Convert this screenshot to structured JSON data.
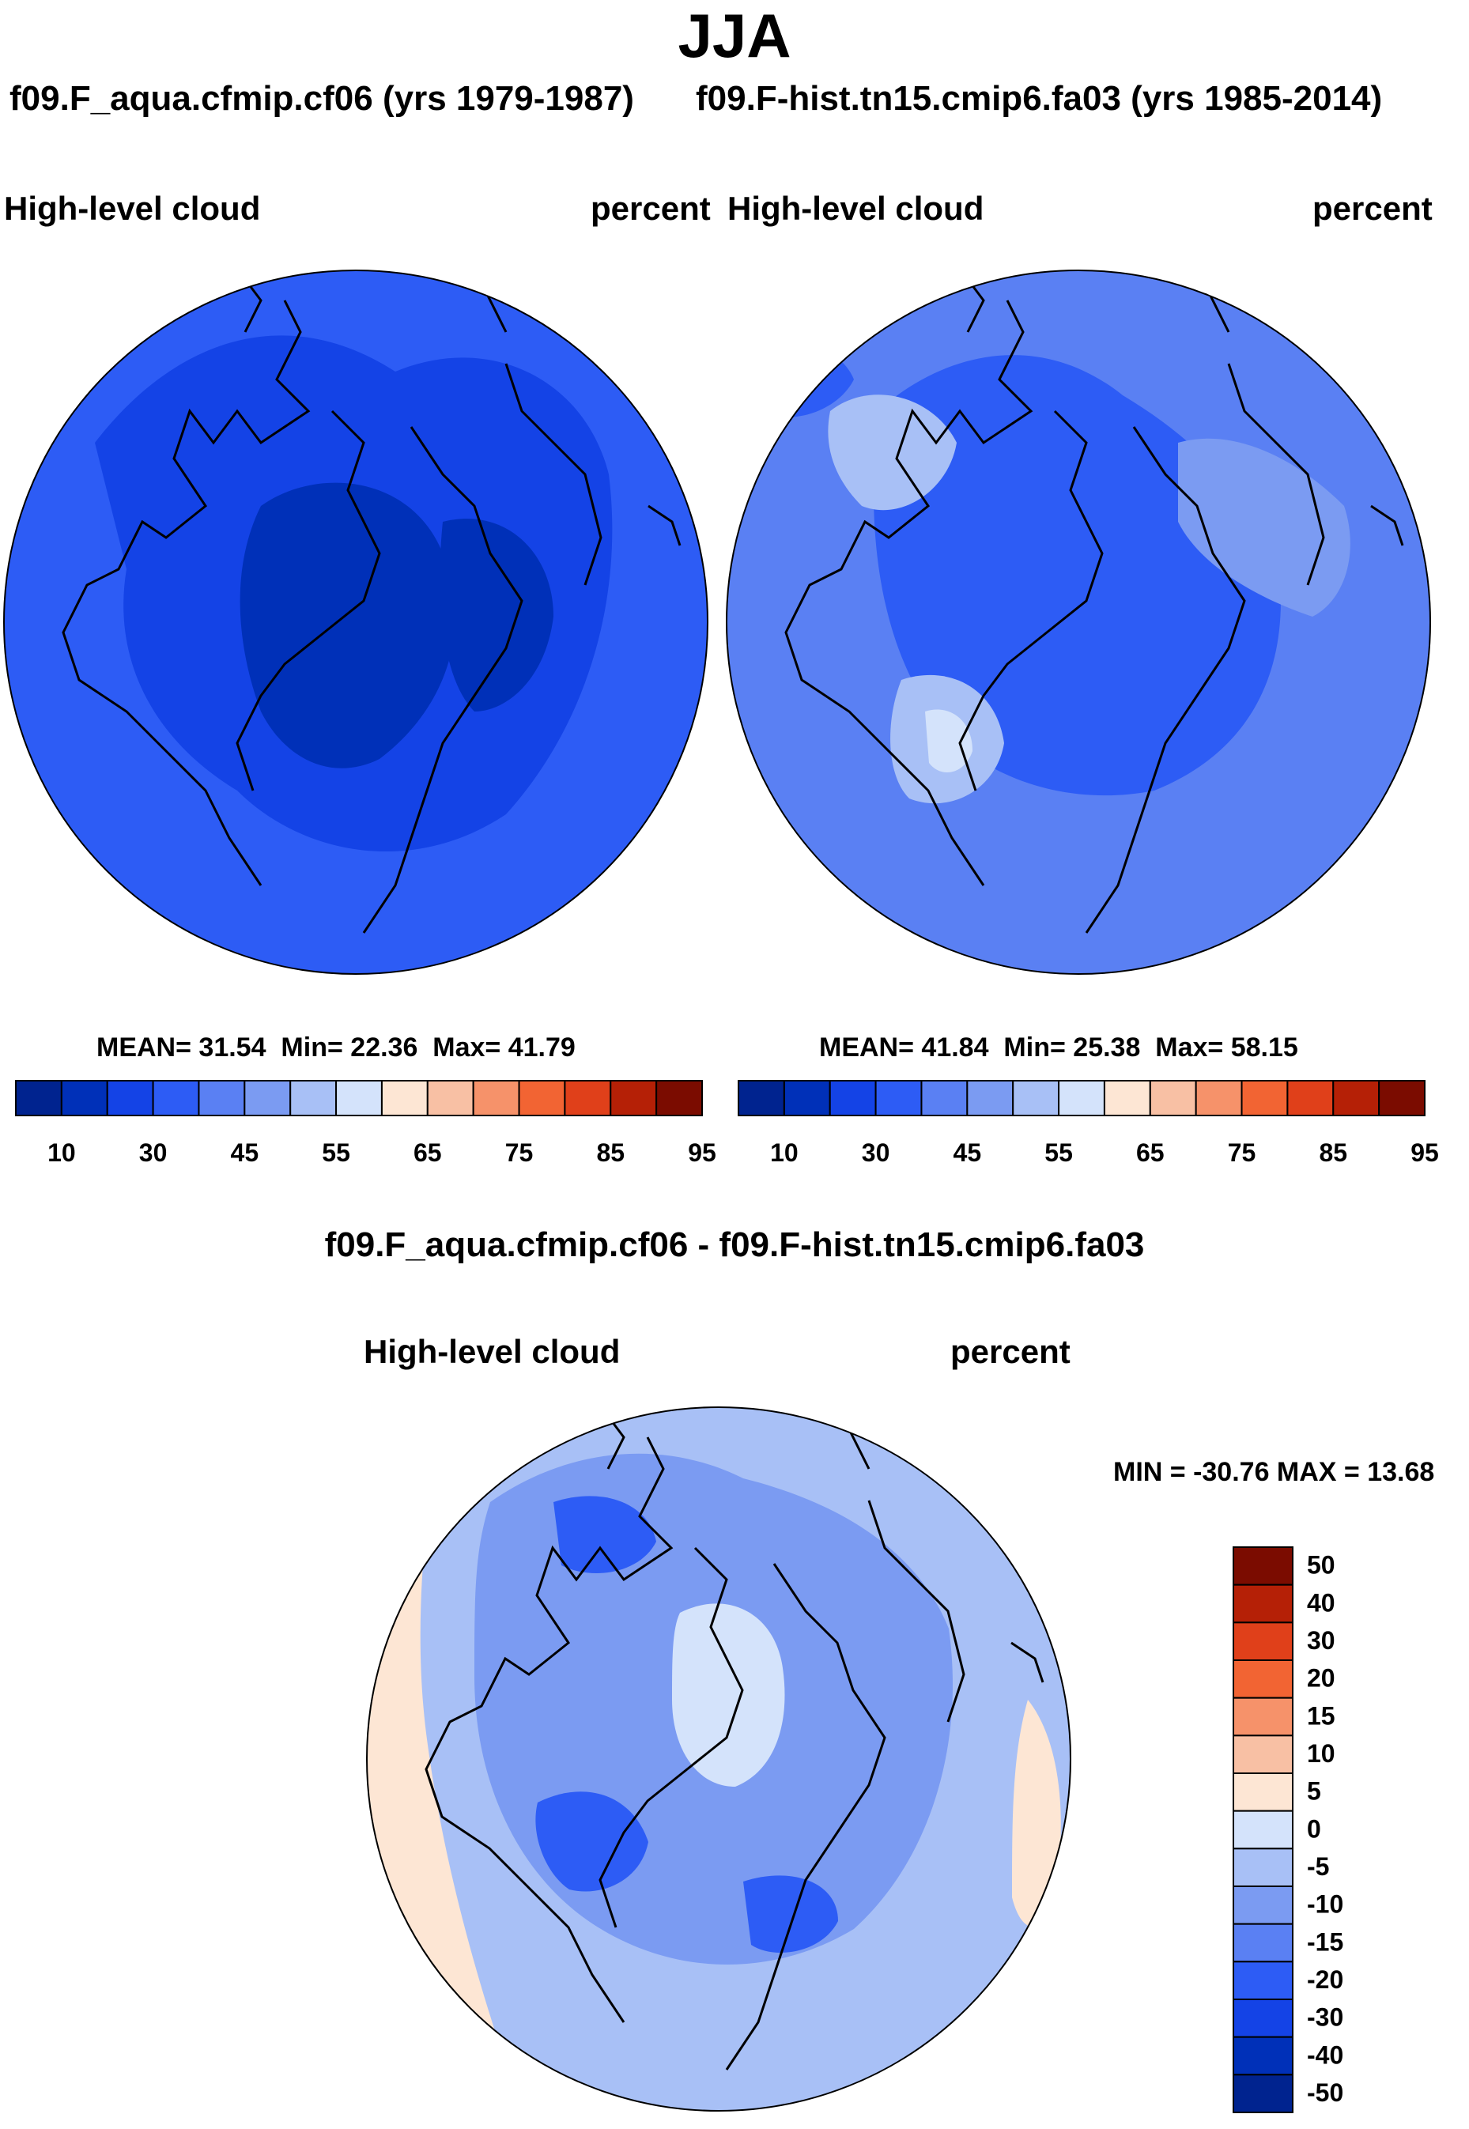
{
  "figure": {
    "season": "JJA",
    "left_title": "f09.F_aqua.cfmip.cf06 (yrs 1979-1987)",
    "right_title": "f09.F-hist.tn15.cmip6.fa03 (yrs 1985-2014)",
    "diff_title": "f09.F_aqua.cfmip.cf06 - f09.F-hist.tn15.cmip6.fa03"
  },
  "colors": {
    "seq": [
      "#00238f",
      "#0030b8",
      "#1443e6",
      "#2d5cf5",
      "#5a80f3",
      "#7b9bf2",
      "#a8c0f6",
      "#d4e3fb",
      "#fde6d4",
      "#f8c0a4",
      "#f6926a",
      "#f26433",
      "#e0401a",
      "#b52006",
      "#7b0c00"
    ],
    "diff": [
      "#00238f",
      "#0030b8",
      "#1443e6",
      "#2d5cf5",
      "#5a80f3",
      "#7b9bf2",
      "#a8c0f6",
      "#d4e3fb",
      "#fde6d4",
      "#f8c0a4",
      "#f6926a",
      "#f26433",
      "#e0401a",
      "#b52006",
      "#7b0c00"
    ],
    "coast": "#000000"
  },
  "chart_data": [
    {
      "type": "heatmap",
      "projection": "north polar stereographic",
      "variable": "High-level cloud",
      "units": "percent",
      "stats": {
        "mean_label": "MEAN=",
        "mean": "31.54",
        "min_label": "Min=",
        "min": "22.36",
        "max_label": "Max=",
        "max": "41.79"
      },
      "levels": [
        "10",
        "30",
        "45",
        "55",
        "65",
        "75",
        "85",
        "95"
      ],
      "dominant_range": [
        20,
        40
      ]
    },
    {
      "type": "heatmap",
      "projection": "north polar stereographic",
      "variable": "High-level cloud",
      "units": "percent",
      "stats": {
        "mean_label": "MEAN=",
        "mean": "41.84",
        "min_label": "Min=",
        "min": "25.38",
        "max_label": "Max=",
        "max": "58.15"
      },
      "levels": [
        "10",
        "30",
        "45",
        "55",
        "65",
        "75",
        "85",
        "95"
      ],
      "dominant_range": [
        30,
        55
      ]
    },
    {
      "type": "heatmap",
      "projection": "north polar stereographic",
      "variable": "High-level cloud",
      "units": "percent",
      "stats_text": "MIN = -30.76 MAX =  13.68",
      "levels": [
        "50",
        "40",
        "30",
        "20",
        "15",
        "10",
        "5",
        "0",
        "-5",
        "-10",
        "-15",
        "-20",
        "-30",
        "-40",
        "-50"
      ],
      "dominant_range": [
        -20,
        5
      ]
    }
  ]
}
